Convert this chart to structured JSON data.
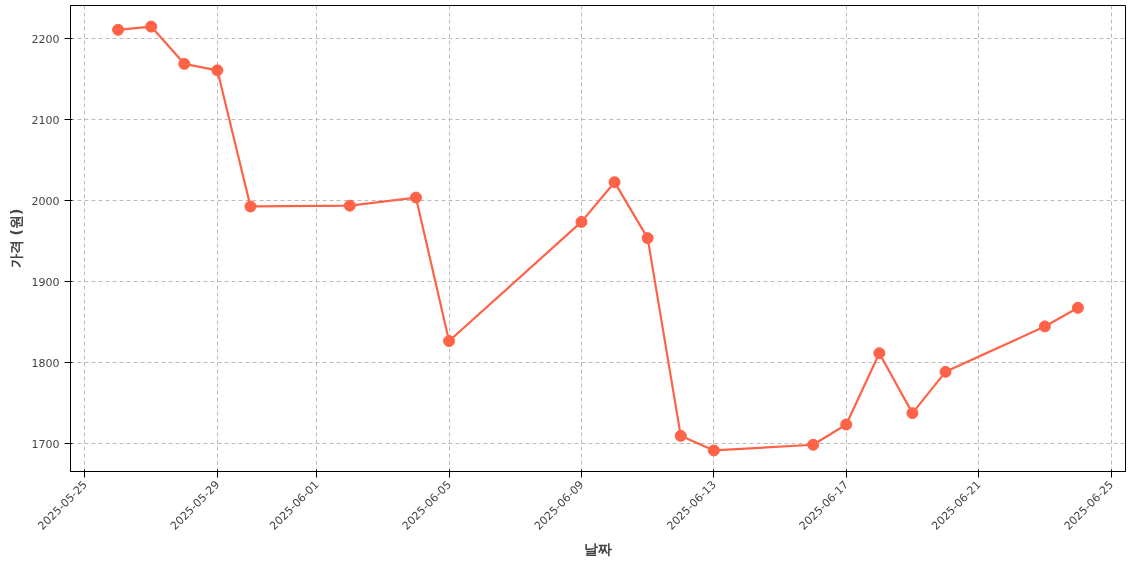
{
  "chart_data": {
    "type": "line",
    "xlabel": "날짜",
    "ylabel": "가격 (원)",
    "x": [
      "2025-05-26",
      "2025-05-27",
      "2025-05-28",
      "2025-05-29",
      "2025-05-30",
      "2025-06-02",
      "2025-06-04",
      "2025-06-05",
      "2025-06-09",
      "2025-06-10",
      "2025-06-11",
      "2025-06-12",
      "2025-06-13",
      "2025-06-16",
      "2025-06-17",
      "2025-06-18",
      "2025-06-19",
      "2025-06-20",
      "2025-06-23",
      "2025-06-24"
    ],
    "series": [
      {
        "color": "#ff6347",
        "values": [
          2211,
          2215,
          2169,
          2161,
          1993,
          1994,
          2004,
          1827,
          1974,
          2023,
          1954,
          1710,
          1692,
          1699,
          1724,
          1812,
          1738,
          1789,
          1845,
          1868
        ]
      }
    ],
    "xlim": [
      "2025-05-24T13:30",
      "2025-06-25T10:30"
    ],
    "ylim": [
      1666,
      2241
    ],
    "xticks": [
      "2025-05-25",
      "2025-05-29",
      "2025-06-01",
      "2025-06-05",
      "2025-06-09",
      "2025-06-13",
      "2025-06-17",
      "2025-06-21",
      "2025-06-25"
    ],
    "yticks": [
      1700,
      1800,
      1900,
      2000,
      2100,
      2200
    ],
    "grid": true,
    "marker": "circle",
    "line_style": "solid"
  }
}
